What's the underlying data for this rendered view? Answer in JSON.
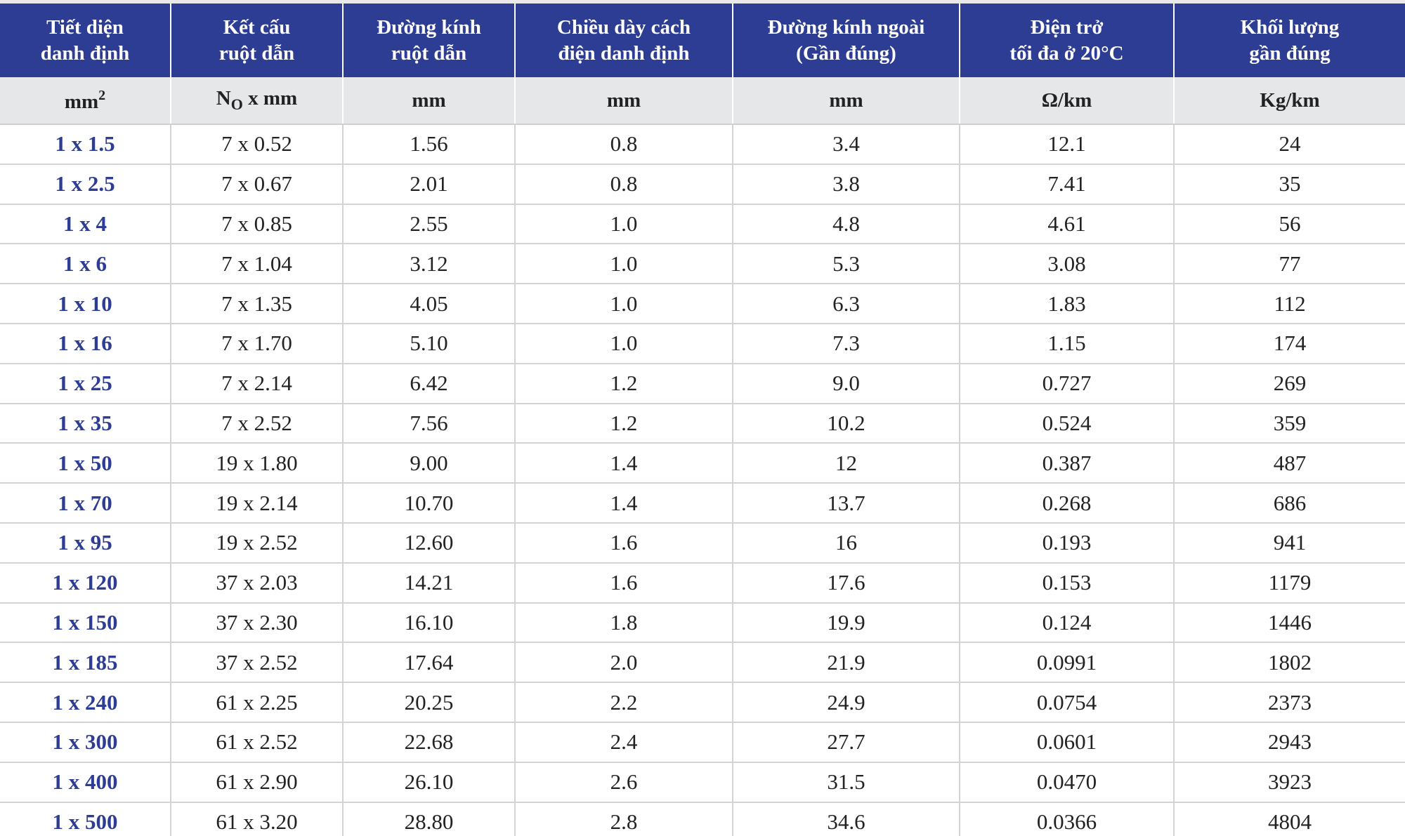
{
  "headers": [
    {
      "line1": "Tiết diện",
      "line2": "danh định"
    },
    {
      "line1": "Kết cấu",
      "line2": "ruột dẫn"
    },
    {
      "line1": "Đường kính",
      "line2": "ruột dẫn"
    },
    {
      "line1": "Chiều dày cách",
      "line2": "điện danh định"
    },
    {
      "line1": "Đường kính ngoài",
      "line2": "(Gần đúng)"
    },
    {
      "line1": "Điện trở",
      "line2": "tối đa ở 20°C"
    },
    {
      "line1": "Khối lượng",
      "line2": "gần đúng"
    }
  ],
  "units": {
    "u1_base": "mm",
    "u1_sup": "2",
    "u2_base": "N",
    "u2_sub": "O",
    "u2_rest": " x mm",
    "u3": "mm",
    "u4": "mm",
    "u5": "mm",
    "u6": "Ω/km",
    "u7": "Kg/km"
  },
  "rows": [
    [
      "1 x 1.5",
      "7 x  0.52",
      "1.56",
      "0.8",
      "3.4",
      "12.1",
      "24"
    ],
    [
      "1 x 2.5",
      "7 x  0.67",
      "2.01",
      "0.8",
      "3.8",
      "7.41",
      "35"
    ],
    [
      "1 x 4",
      "7 x  0.85",
      "2.55",
      "1.0",
      "4.8",
      "4.61",
      "56"
    ],
    [
      "1 x 6",
      "7 x 1.04",
      "3.12",
      "1.0",
      "5.3",
      "3.08",
      "77"
    ],
    [
      "1 x 10",
      "7 x 1.35",
      "4.05",
      "1.0",
      "6.3",
      "1.83",
      "112"
    ],
    [
      "1 x 16",
      "7 x 1.70",
      "5.10",
      "1.0",
      "7.3",
      "1.15",
      "174"
    ],
    [
      "1 x 25",
      "7 x 2.14",
      "6.42",
      "1.2",
      "9.0",
      "0.727",
      "269"
    ],
    [
      "1 x 35",
      "7 x 2.52",
      "7.56",
      "1.2",
      "10.2",
      "0.524",
      "359"
    ],
    [
      "1 x 50",
      "19 x 1.80",
      "9.00",
      "1.4",
      "12",
      "0.387",
      "487"
    ],
    [
      "1 x 70",
      "19 x 2.14",
      "10.70",
      "1.4",
      "13.7",
      "0.268",
      "686"
    ],
    [
      "1 x 95",
      "19 x 2.52",
      "12.60",
      "1.6",
      "16",
      "0.193",
      "941"
    ],
    [
      "1 x 120",
      "37 x 2.03",
      "14.21",
      "1.6",
      "17.6",
      "0.153",
      "1179"
    ],
    [
      "1 x 150",
      "37 x 2.30",
      "16.10",
      "1.8",
      "19.9",
      "0.124",
      "1446"
    ],
    [
      "1 x 185",
      "37 x 2.52",
      "17.64",
      "2.0",
      "21.9",
      "0.0991",
      "1802"
    ],
    [
      "1 x 240",
      "61 x 2.25",
      "20.25",
      "2.2",
      "24.9",
      "0.0754",
      "2373"
    ],
    [
      "1 x 300",
      "61 x 2.52",
      "22.68",
      "2.4",
      "27.7",
      "0.0601",
      "2943"
    ],
    [
      "1 x 400",
      "61 x 2.90",
      "26.10",
      "2.6",
      "31.5",
      "0.0470",
      "3923"
    ],
    [
      "1 x 500",
      "61 x 3.20",
      "28.80",
      "2.8",
      "34.6",
      "0.0366",
      "4804"
    ]
  ]
}
